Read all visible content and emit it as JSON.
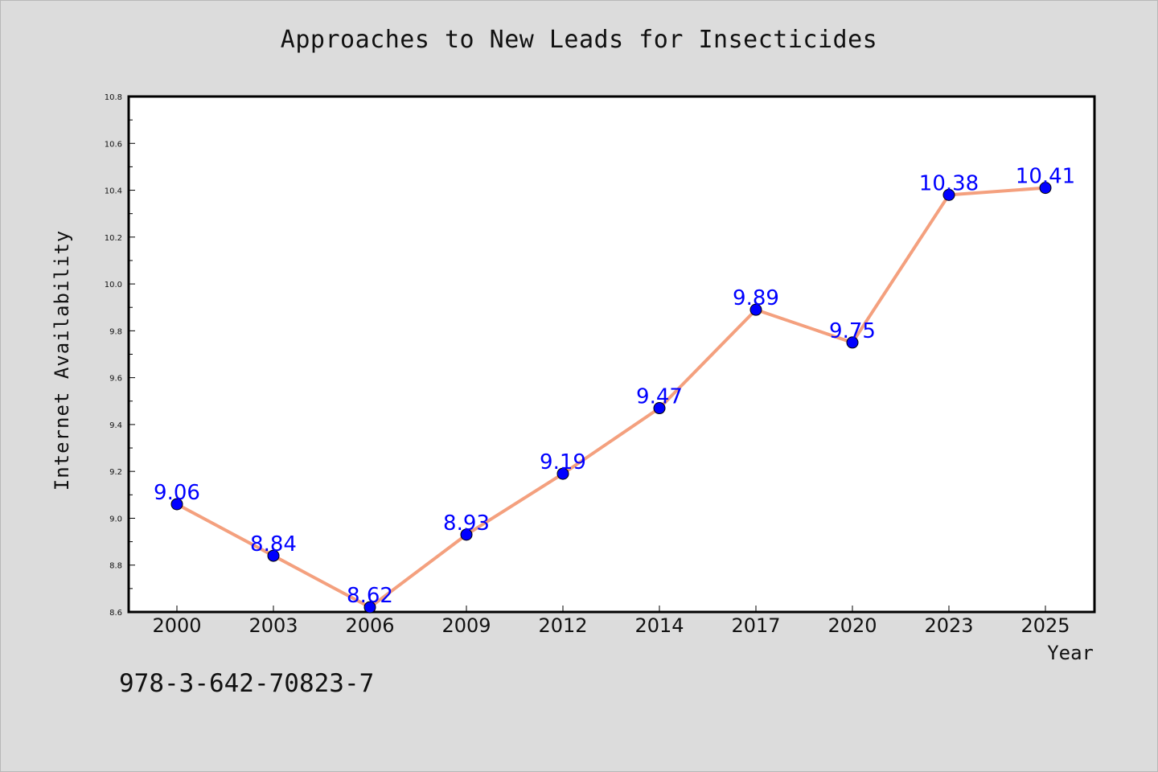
{
  "chart_data": {
    "type": "line",
    "title": "Approaches to New Leads for Insecticides",
    "xlabel": "Year",
    "ylabel": "Internet Availability",
    "categories": [
      "2000",
      "2003",
      "2006",
      "2009",
      "2012",
      "2014",
      "2017",
      "2020",
      "2023",
      "2025"
    ],
    "series": [
      {
        "values": [
          9.06,
          8.84,
          8.62,
          8.93,
          9.19,
          9.47,
          9.89,
          9.75,
          10.38,
          10.41
        ]
      }
    ],
    "data_labels": [
      "9.06",
      "8.84",
      "8.62",
      "8.93",
      "9.19",
      "9.47",
      "9.89",
      "9.75",
      "10.38",
      "10.41"
    ],
    "ylim": [
      8.6,
      10.8
    ],
    "yticks": [
      "8.6",
      "8.8",
      "9.0",
      "9.2",
      "9.4",
      "9.6",
      "9.8",
      "10.0",
      "10.2",
      "10.4",
      "10.6",
      "10.8"
    ],
    "grid": false,
    "line_color": "#f4a07e",
    "marker_color": "#0000ff",
    "label_color": "#0000ff"
  },
  "footer": {
    "code": "978-3-642-70823-7"
  },
  "colors": {
    "background": "#dcdcdc",
    "plot_background": "#ffffff",
    "axis": "#000000"
  }
}
